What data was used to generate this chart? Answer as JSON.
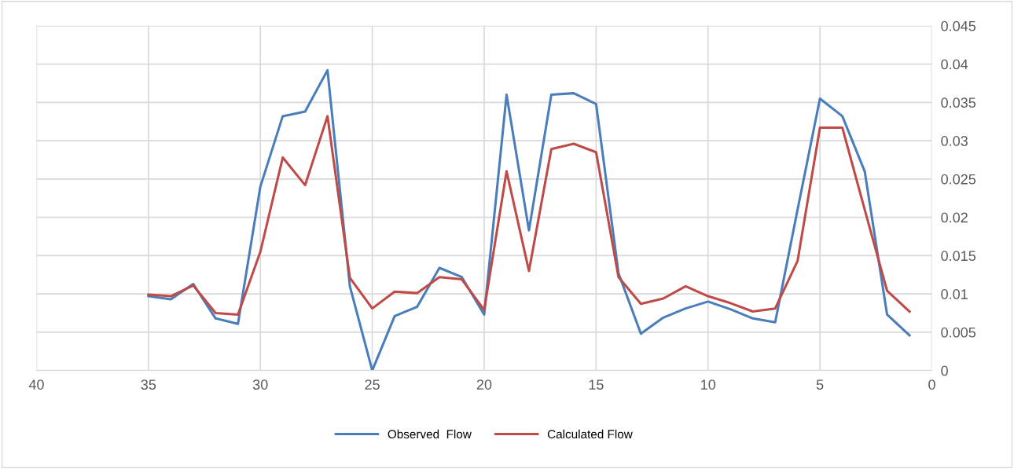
{
  "chart_data": {
    "type": "line",
    "x": [
      35,
      34,
      33,
      32,
      31,
      30,
      29,
      28,
      27,
      26,
      25,
      24,
      23,
      22,
      21,
      20,
      19,
      18,
      17,
      16,
      15,
      14,
      13,
      12,
      11,
      10,
      9,
      8,
      7,
      6,
      5,
      4,
      3,
      2,
      1
    ],
    "series": [
      {
        "name": "Observed  Flow",
        "color": "#4a7ebb",
        "values": [
          0.0097,
          0.0093,
          0.0113,
          0.0068,
          0.0061,
          0.024,
          0.0332,
          0.0338,
          0.0392,
          0.011,
          0.0,
          0.0071,
          0.0083,
          0.0134,
          0.0122,
          0.0073,
          0.036,
          0.0183,
          0.036,
          0.0362,
          0.0348,
          0.0127,
          0.0048,
          0.0069,
          0.0081,
          0.009,
          0.008,
          0.0068,
          0.0063,
          0.021,
          0.0355,
          0.0332,
          0.026,
          0.0073,
          0.0046
        ]
      },
      {
        "name": "Calculated Flow",
        "color": "#be4b48",
        "values": [
          0.0099,
          0.0097,
          0.0111,
          0.0075,
          0.0073,
          0.0155,
          0.0278,
          0.0242,
          0.0332,
          0.0121,
          0.0081,
          0.0103,
          0.0101,
          0.0122,
          0.0119,
          0.0079,
          0.026,
          0.013,
          0.0289,
          0.0296,
          0.0285,
          0.0122,
          0.0087,
          0.0094,
          0.011,
          0.0097,
          0.0088,
          0.0077,
          0.0081,
          0.0143,
          0.0317,
          0.0317,
          0.021,
          0.0104,
          0.0077
        ]
      }
    ],
    "xlim": [
      40,
      0
    ],
    "xticks": [
      40,
      35,
      30,
      25,
      20,
      15,
      10,
      5,
      0
    ],
    "ylim": [
      0,
      0.045
    ],
    "yticks": [
      0,
      0.005,
      0.01,
      0.015,
      0.02,
      0.025,
      0.03,
      0.035,
      0.04,
      0.045
    ],
    "grid": true,
    "legend": "bottom",
    "line_style": "solid",
    "marker": "none"
  }
}
